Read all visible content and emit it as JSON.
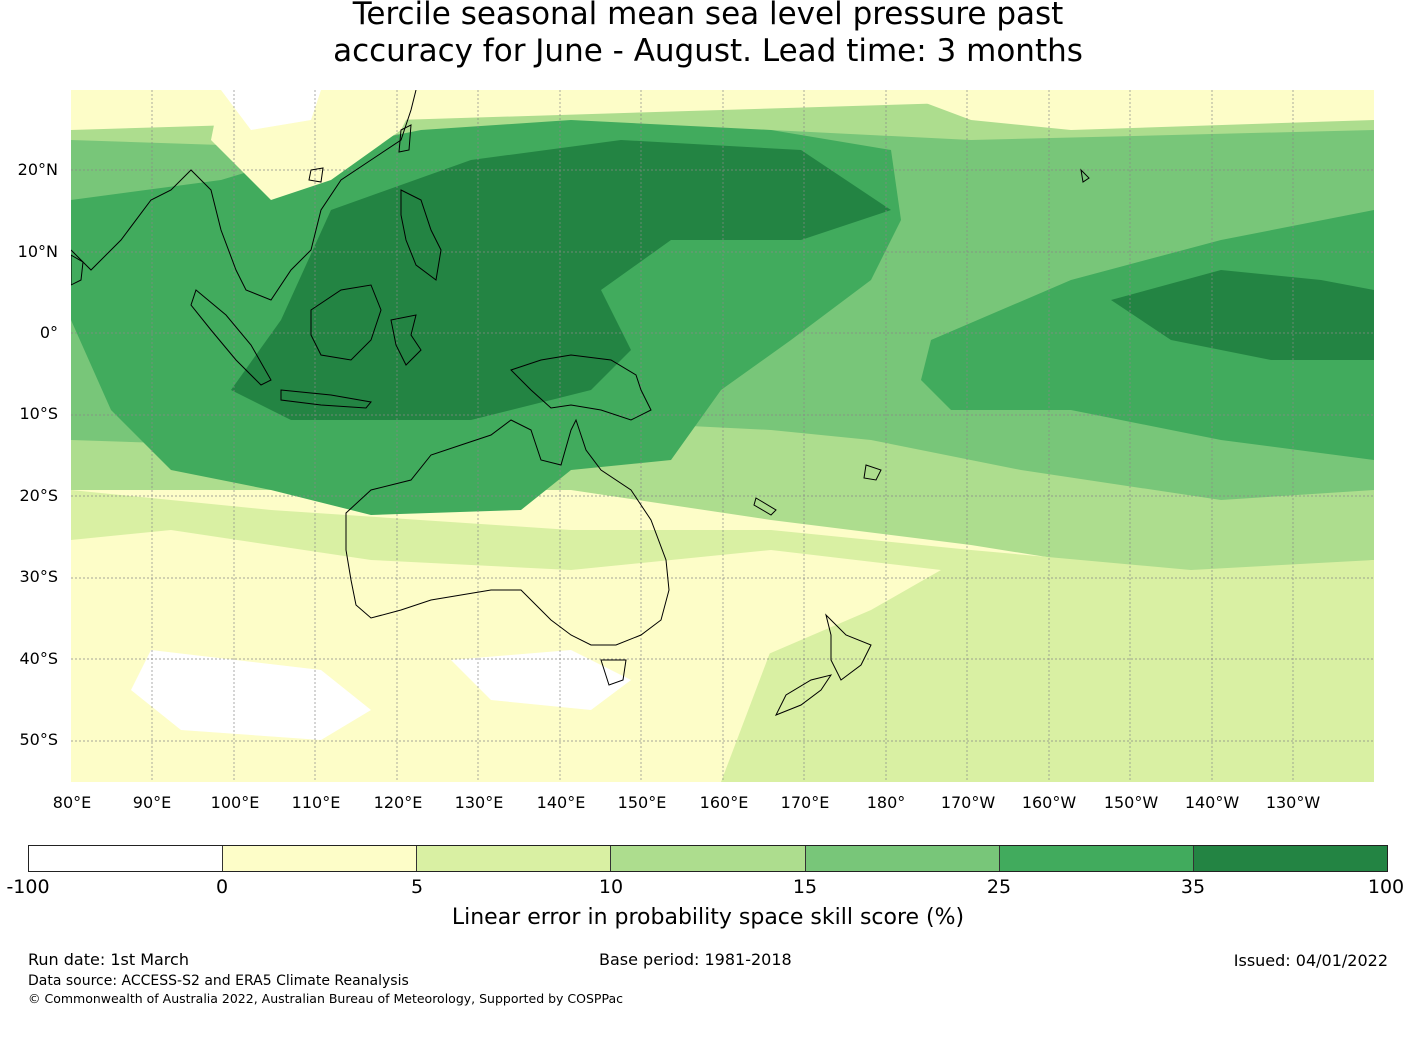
{
  "title_line1": "Tercile seasonal mean sea level pressure past",
  "title_line2": "accuracy for June - August. Lead time: 3 months",
  "map": {
    "lat_labels": [
      "20°N",
      "10°N",
      "0°",
      "10°S",
      "20°S",
      "30°S",
      "40°S",
      "50°S"
    ],
    "lon_labels": [
      "80°E",
      "90°E",
      "100°E",
      "110°E",
      "120°E",
      "130°E",
      "140°E",
      "150°E",
      "160°E",
      "170°E",
      "180°",
      "170°W",
      "160°W",
      "150°W",
      "140°W",
      "130°W"
    ]
  },
  "colorbar": {
    "colors": [
      "#ffffff",
      "#fdfdc8",
      "#d9f0a3",
      "#addd8e",
      "#78c679",
      "#41ab5d",
      "#238443"
    ],
    "ticks": [
      "-100",
      "0",
      "5",
      "10",
      "15",
      "25",
      "35",
      "100"
    ],
    "label": "Linear error in probability space skill score (%)"
  },
  "footer": {
    "run_date": "Run date: 1st March",
    "base_period": "Base period: 1981-2018",
    "issued": "Issued: 04/01/2022",
    "data_source": "Data source: ACCESS-S2 and ERA5 Climate Reanalysis",
    "copyright": "© Commonwealth of Australia 2022, Australian Bureau of Meteorology, Supported by COSPPac"
  }
}
